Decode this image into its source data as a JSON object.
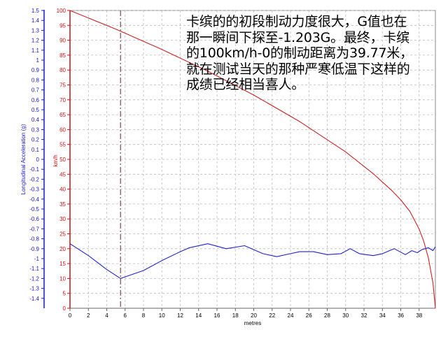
{
  "annotation_text": "卡缤的的初段制动力度很大，G值也在\n那一瞬间下探至-1.203G。最终，卡缤\n的100km/h-0的制动距离为39.77米，\n就在测试当天的那种严寒低温下这样的\n成绩已经相当喜人。",
  "chart_data": {
    "type": "line",
    "title": "",
    "xlabel": "metres",
    "ylabel_left": "Longitudinal Acceleration (g)",
    "ylabel_right": "km/h",
    "xlim": [
      0,
      39.77
    ],
    "x_ticks": [
      0,
      2,
      4,
      6,
      8,
      10,
      12,
      14,
      16,
      18,
      20,
      22,
      24,
      26,
      28,
      30,
      32,
      34,
      36,
      38
    ],
    "left_axis": {
      "lim": [
        -1.5,
        1.5
      ],
      "ticks": [
        1.5,
        1.4,
        1.3,
        1.2,
        1.1,
        1,
        0.9,
        0.8,
        0.7,
        0.6,
        0.5,
        0.4,
        0.3,
        0.2,
        0.1,
        0,
        -0.1,
        -0.2,
        -0.3,
        -0.4,
        -0.5,
        -0.6,
        -0.7,
        -0.8,
        -0.9,
        -1,
        -1.1,
        -1.2,
        -1.3,
        -1.4
      ],
      "color": "#1a1acc"
    },
    "right_axis": {
      "lim": [
        0,
        100
      ],
      "ticks": [
        100,
        95,
        90,
        85,
        80,
        75,
        70,
        65,
        60,
        55,
        50,
        45,
        40,
        35,
        30,
        25,
        20,
        15,
        10,
        5,
        0
      ],
      "color": "#cc1111"
    },
    "grid": true,
    "marker_line_x": 5.5,
    "series": [
      {
        "axis": "right",
        "color": "#cc2222",
        "points": [
          [
            0,
            100
          ],
          [
            5,
            93.7
          ],
          [
            10,
            86.9
          ],
          [
            15,
            79.6
          ],
          [
            20,
            71.6
          ],
          [
            25,
            62.7
          ],
          [
            30,
            52.5
          ],
          [
            33,
            45.2
          ],
          [
            35,
            39.6
          ],
          [
            36,
            36.4
          ],
          [
            37,
            32.5
          ],
          [
            38,
            26.6
          ],
          [
            38.5,
            22.5
          ],
          [
            39,
            17
          ],
          [
            39.5,
            8.5
          ],
          [
            39.77,
            0
          ]
        ]
      },
      {
        "axis": "left",
        "color": "#2222cc",
        "points": [
          [
            0,
            -0.85
          ],
          [
            2,
            -0.97
          ],
          [
            4,
            -1.11
          ],
          [
            5.5,
            -1.2
          ],
          [
            8,
            -1.12
          ],
          [
            10,
            -1.02
          ],
          [
            12,
            -0.93
          ],
          [
            13,
            -0.89
          ],
          [
            15,
            -0.85
          ],
          [
            17,
            -0.9
          ],
          [
            19,
            -0.87
          ],
          [
            21,
            -0.95
          ],
          [
            22.5,
            -0.98
          ],
          [
            24,
            -0.95
          ],
          [
            25,
            -0.93
          ],
          [
            26.5,
            -0.93
          ],
          [
            28,
            -0.96
          ],
          [
            29.5,
            -0.95
          ],
          [
            30.5,
            -0.9
          ],
          [
            31.5,
            -0.95
          ],
          [
            33,
            -0.97
          ],
          [
            34,
            -0.95
          ],
          [
            35.3,
            -0.9
          ],
          [
            36.5,
            -0.96
          ],
          [
            37.2,
            -0.92
          ],
          [
            37.8,
            -0.94
          ],
          [
            38.3,
            -0.91
          ],
          [
            39,
            -0.89
          ],
          [
            39.5,
            -0.92
          ],
          [
            39.77,
            -0.88
          ]
        ]
      }
    ]
  }
}
